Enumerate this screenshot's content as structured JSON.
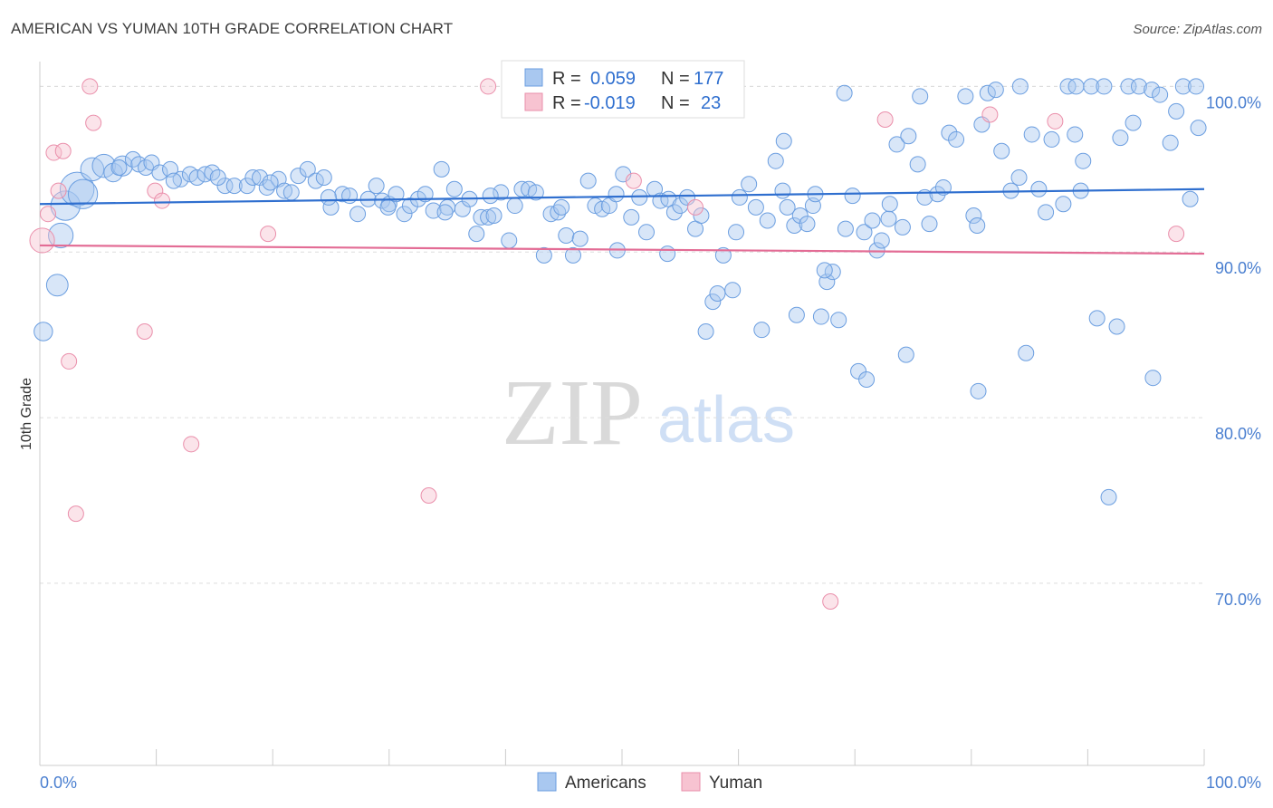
{
  "title": "AMERICAN VS YUMAN 10TH GRADE CORRELATION CHART",
  "source": "Source: ZipAtlas.com",
  "watermark": {
    "zip": "ZIP",
    "atlas": "atlas"
  },
  "colors": {
    "americans_fill": "#a9c8f0",
    "americans_stroke": "#6b9ee0",
    "americans_line": "#2f6fcf",
    "yuman_fill": "#f7c3d1",
    "yuman_stroke": "#ea8fab",
    "yuman_line": "#e36c95",
    "tick_text": "#4a7fd0",
    "grid": "#dddddd"
  },
  "legend": {
    "rows": [
      {
        "r_label": "R =",
        "r_value": "0.059",
        "n_label": "N =",
        "n_value": "177"
      },
      {
        "r_label": "R =",
        "r_value": "-0.019",
        "n_label": "N =",
        "n_value": "23"
      }
    ]
  },
  "bottom_legend": {
    "americans": "Americans",
    "yuman": "Yuman"
  },
  "chart_data": {
    "type": "scatter",
    "title": "AMERICAN VS YUMAN 10TH GRADE CORRELATION CHART",
    "xlabel": "",
    "ylabel": "10th Grade",
    "xlim": [
      0,
      100
    ],
    "ylim": [
      59,
      101.5
    ],
    "x_tick_labels": [
      "0.0%",
      "100.0%"
    ],
    "y_ticks": [
      70,
      80,
      90,
      100
    ],
    "y_tick_labels": [
      "70.0%",
      "80.0%",
      "90.0%",
      "100.0%"
    ],
    "grid": true,
    "legend_placement": "top-center",
    "series": [
      {
        "name": "Americans",
        "r": 0.059,
        "n": 177,
        "trend": [
          [
            0,
            92.9
          ],
          [
            100,
            93.8
          ]
        ],
        "points": [
          [
            0.3,
            85.2,
            1.2
          ],
          [
            1.5,
            88,
            1.4
          ],
          [
            1.8,
            91,
            1.6
          ],
          [
            2.2,
            92.8,
            1.9
          ],
          [
            3.2,
            93.8,
            2.2
          ],
          [
            3.7,
            93.5,
            1.9
          ],
          [
            4.5,
            95,
            1.5
          ],
          [
            5.5,
            95.2,
            1.5
          ],
          [
            6.3,
            94.8,
            1.2
          ],
          [
            7.1,
            95.2,
            1.3
          ],
          [
            8,
            95.6,
            1
          ],
          [
            8.5,
            95.3,
            1
          ],
          [
            9.1,
            95.1,
            1
          ],
          [
            9.6,
            95.4,
            1
          ],
          [
            10.3,
            94.8,
            1
          ],
          [
            11.2,
            95,
            1
          ],
          [
            12.1,
            94.4,
            1
          ],
          [
            12.9,
            94.7,
            1
          ],
          [
            13.5,
            94.5,
            1
          ],
          [
            14.2,
            94.7,
            1
          ],
          [
            14.8,
            94.8,
            1
          ],
          [
            15.9,
            94,
            1
          ],
          [
            16.7,
            94,
            1
          ],
          [
            17.8,
            94,
            1
          ],
          [
            18.3,
            94.5,
            1
          ],
          [
            18.9,
            94.5,
            1
          ],
          [
            19.5,
            93.9,
            1
          ],
          [
            20.5,
            94.4,
            1
          ],
          [
            21,
            93.7,
            1
          ],
          [
            21.6,
            93.6,
            1
          ],
          [
            22.2,
            94.6,
            1
          ],
          [
            23,
            95,
            1
          ],
          [
            23.7,
            94.3,
            1
          ],
          [
            24.4,
            94.5,
            1
          ],
          [
            25,
            92.7,
            1
          ],
          [
            26,
            93.5,
            1
          ],
          [
            26.6,
            93.4,
            1
          ],
          [
            27.3,
            92.3,
            1
          ],
          [
            28.2,
            93.2,
            1
          ],
          [
            28.9,
            94,
            1
          ],
          [
            29.4,
            93.1,
            1
          ],
          [
            30,
            92.9,
            1
          ],
          [
            30.6,
            93.5,
            1
          ],
          [
            31.3,
            92.3,
            1
          ],
          [
            31.8,
            92.8,
            1
          ],
          [
            32.5,
            93.2,
            1
          ],
          [
            33.1,
            93.5,
            1
          ],
          [
            33.8,
            92.5,
            1
          ],
          [
            34.5,
            95,
            1
          ],
          [
            35,
            92.7,
            1
          ],
          [
            35.6,
            93.8,
            1
          ],
          [
            36.3,
            92.6,
            1
          ],
          [
            36.9,
            93.2,
            1
          ],
          [
            37.5,
            91.1,
            1
          ],
          [
            37.9,
            92.1,
            1
          ],
          [
            38.5,
            92.1,
            1
          ],
          [
            39,
            92.2,
            1
          ],
          [
            39.6,
            93.6,
            1
          ],
          [
            40.3,
            90.7,
            1
          ],
          [
            40.8,
            92.8,
            1
          ],
          [
            41.4,
            93.8,
            1
          ],
          [
            42,
            93.8,
            1
          ],
          [
            42.6,
            93.6,
            1
          ],
          [
            43.3,
            89.8,
            1
          ],
          [
            43.9,
            92.3,
            1
          ],
          [
            44.5,
            92.4,
            1
          ],
          [
            45.2,
            91,
            1
          ],
          [
            45.8,
            89.8,
            1
          ],
          [
            46.4,
            90.8,
            1
          ],
          [
            47.1,
            94.3,
            1
          ],
          [
            47.7,
            92.8,
            1
          ],
          [
            48.3,
            92.6,
            1
          ],
          [
            48.9,
            92.8,
            1
          ],
          [
            49.5,
            93.5,
            1
          ],
          [
            50.1,
            94.7,
            1
          ],
          [
            50.8,
            92.1,
            1
          ],
          [
            51.5,
            93.3,
            1
          ],
          [
            52.1,
            91.2,
            1
          ],
          [
            52.8,
            93.8,
            1
          ],
          [
            53.3,
            93.1,
            1
          ],
          [
            54,
            93.2,
            1
          ],
          [
            54.5,
            92.4,
            1
          ],
          [
            55,
            92.8,
            1
          ],
          [
            55.6,
            93.3,
            1
          ],
          [
            56.3,
            91.4,
            1
          ],
          [
            57.2,
            85.2,
            1
          ],
          [
            57.8,
            87,
            1
          ],
          [
            58.2,
            87.5,
            1
          ],
          [
            58.7,
            89.8,
            1
          ],
          [
            59.5,
            87.7,
            1
          ],
          [
            60.1,
            93.3,
            1
          ],
          [
            60.9,
            94.1,
            1
          ],
          [
            61.5,
            92.7,
            1
          ],
          [
            62.5,
            91.9,
            1
          ],
          [
            63.2,
            95.5,
            1
          ],
          [
            63.8,
            93.7,
            1
          ],
          [
            64.2,
            92.7,
            1
          ],
          [
            64.8,
            91.6,
            1
          ],
          [
            65.3,
            92.2,
            1
          ],
          [
            65.9,
            91.7,
            1
          ],
          [
            66.4,
            92.8,
            1
          ],
          [
            67.1,
            86.1,
            1
          ],
          [
            67.6,
            88.2,
            1
          ],
          [
            68.1,
            88.8,
            1
          ],
          [
            68.6,
            85.9,
            1
          ],
          [
            69.2,
            91.4,
            1
          ],
          [
            69.8,
            93.4,
            1
          ],
          [
            70.3,
            82.8,
            1
          ],
          [
            70.8,
            91.2,
            1
          ],
          [
            71.5,
            91.9,
            1
          ],
          [
            71.9,
            90.1,
            1
          ],
          [
            72.3,
            90.7,
            1
          ],
          [
            72.9,
            92,
            1
          ],
          [
            73.6,
            96.5,
            1
          ],
          [
            74.1,
            91.5,
            1
          ],
          [
            74.6,
            97,
            1
          ],
          [
            75.4,
            95.3,
            1
          ],
          [
            76,
            93.3,
            1
          ],
          [
            76.4,
            91.7,
            1
          ],
          [
            77.1,
            93.5,
            1
          ],
          [
            77.6,
            93.9,
            1
          ],
          [
            78.1,
            97.2,
            1
          ],
          [
            78.7,
            96.8,
            1
          ],
          [
            79.5,
            99.4,
            1
          ],
          [
            80.2,
            92.2,
            1
          ],
          [
            80.9,
            97.7,
            1
          ],
          [
            81.4,
            99.6,
            1
          ],
          [
            82.1,
            99.8,
            1
          ],
          [
            82.6,
            96.1,
            1
          ],
          [
            83.4,
            93.7,
            1
          ],
          [
            84.1,
            94.5,
            1
          ],
          [
            85.2,
            97.1,
            1
          ],
          [
            85.8,
            93.8,
            1
          ],
          [
            86.4,
            92.4,
            1
          ],
          [
            86.9,
            96.8,
            1
          ],
          [
            87.9,
            92.9,
            1
          ],
          [
            88.3,
            100,
            1
          ],
          [
            89,
            100,
            1
          ],
          [
            89.6,
            95.5,
            1
          ],
          [
            90.3,
            100,
            1
          ],
          [
            91.4,
            100,
            1
          ],
          [
            92.8,
            96.9,
            1
          ],
          [
            93.5,
            100,
            1
          ],
          [
            94.4,
            100,
            1
          ],
          [
            95.5,
            99.8,
            1
          ],
          [
            96.2,
            99.5,
            1
          ],
          [
            97.1,
            96.6,
            1
          ],
          [
            97.6,
            98.5,
            1
          ],
          [
            98.2,
            100,
            1
          ],
          [
            98.8,
            93.2,
            1
          ],
          [
            99.3,
            100,
            1
          ],
          [
            99.5,
            97.5,
            1
          ],
          [
            62,
            85.3,
            1
          ],
          [
            65,
            86.2,
            1
          ],
          [
            67.4,
            88.9,
            1
          ],
          [
            71,
            82.3,
            1
          ],
          [
            74.4,
            83.8,
            1
          ],
          [
            80.6,
            81.6,
            1
          ],
          [
            84.7,
            83.9,
            1
          ],
          [
            90.8,
            86,
            1
          ],
          [
            92.5,
            85.5,
            1
          ],
          [
            95.6,
            82.4,
            1
          ],
          [
            91.8,
            75.2,
            1
          ],
          [
            63.9,
            96.7,
            1
          ],
          [
            69.1,
            99.6,
            1
          ],
          [
            75.6,
            99.4,
            1
          ],
          [
            84.2,
            100,
            1
          ],
          [
            88.9,
            97.1,
            1
          ],
          [
            93.9,
            97.8,
            1
          ],
          [
            89.4,
            93.7,
            1
          ],
          [
            80.5,
            91.6,
            1
          ],
          [
            73,
            92.9,
            1
          ],
          [
            66.6,
            93.5,
            1
          ],
          [
            59.8,
            91.2,
            1
          ],
          [
            56.8,
            92.2,
            1
          ],
          [
            53.9,
            89.9,
            1
          ],
          [
            49.6,
            90.1,
            1
          ],
          [
            44.8,
            92.7,
            1
          ],
          [
            38.7,
            93.4,
            1
          ],
          [
            34.8,
            92.4,
            1
          ],
          [
            29.9,
            92.7,
            1
          ],
          [
            24.8,
            93.3,
            1
          ],
          [
            19.8,
            94.2,
            1
          ],
          [
            15.3,
            94.5,
            1
          ],
          [
            11.5,
            94.3,
            1
          ],
          [
            6.8,
            95.1,
            1
          ]
        ]
      },
      {
        "name": "Yuman",
        "r": -0.019,
        "n": 23,
        "trend": [
          [
            0,
            90.4
          ],
          [
            100,
            89.9
          ]
        ],
        "points": [
          [
            0.2,
            90.7,
            1.6
          ],
          [
            0.7,
            92.3,
            1
          ],
          [
            1.2,
            96,
            1
          ],
          [
            1.6,
            93.7,
            1
          ],
          [
            2,
            96.1,
            1
          ],
          [
            2.5,
            83.4,
            1
          ],
          [
            3.1,
            74.2,
            1
          ],
          [
            4.3,
            100,
            1
          ],
          [
            4.6,
            97.8,
            1
          ],
          [
            9,
            85.2,
            1
          ],
          [
            9.9,
            93.7,
            1
          ],
          [
            10.5,
            93.1,
            1
          ],
          [
            13,
            78.4,
            1
          ],
          [
            19.6,
            91.1,
            1
          ],
          [
            33.4,
            75.3,
            1
          ],
          [
            38.5,
            100,
            1
          ],
          [
            51,
            94.3,
            1
          ],
          [
            56.3,
            92.7,
            1
          ],
          [
            67.9,
            68.9,
            1
          ],
          [
            72.6,
            98,
            1
          ],
          [
            81.6,
            98.3,
            1
          ],
          [
            87.2,
            97.9,
            1
          ],
          [
            97.6,
            91.1,
            1
          ]
        ]
      }
    ]
  }
}
